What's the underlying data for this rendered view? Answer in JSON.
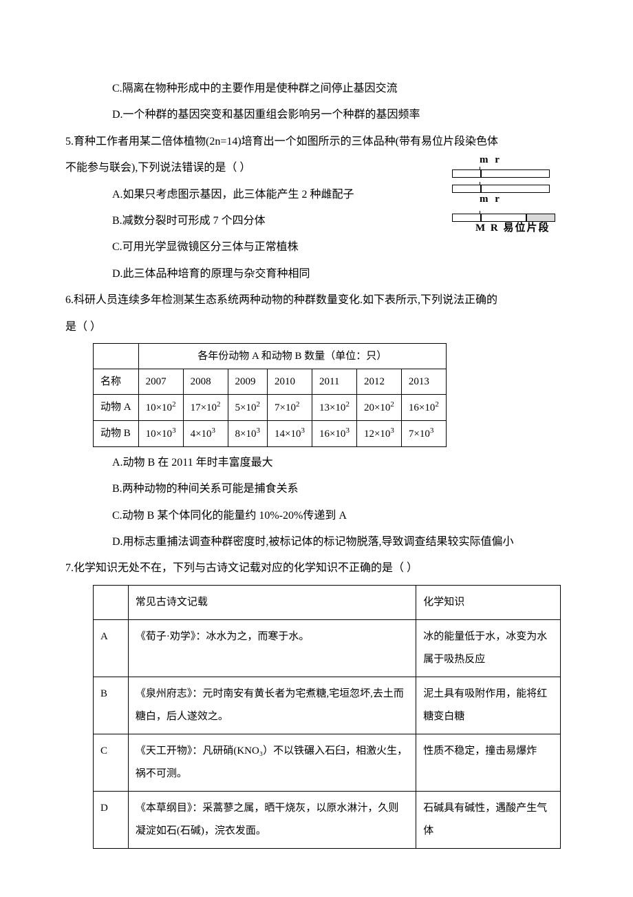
{
  "q4": {
    "optC": "C.隔离在物种形成中的主要作用是使种群之间停止基因交流",
    "optD": "D.一个种群的基因突变和基因重组会影响另一个种群的基因频率"
  },
  "q5": {
    "stem1": "5.育种工作者用某二倍体植物(2n=14)培育出一个如图所示的三体品种(带有易位片段染色体",
    "stem2": "不能参与联会),下列说法错误的是（     ）",
    "optA": "A.如果只考虑图示基因，此三体能产生 2 种雌配子",
    "optB": "B.减数分裂时可形成 7 个四分体",
    "optC": "C.可用光学显微镜区分三体与正常植株",
    "optD": "D.此三体品种培育的原理与杂交育种相同",
    "fig": {
      "label_top": "m r",
      "label_mid": "m r",
      "label_bot": "M R  易位片段"
    }
  },
  "q6": {
    "stem1": "6.科研人员连续多年检测某生态系统两种动物的种群数量变化.如下表所示,下列说法正确的",
    "stem2": "是（     ）",
    "table": {
      "title": "各年份动物 A 和动物 B 数量（单位：只）",
      "header": [
        "名称",
        "2007",
        "2008",
        "2009",
        "2010",
        "2011",
        "2012",
        "2013"
      ],
      "rows": [
        {
          "name": "动物 A",
          "cells": [
            "10×10",
            "17×10",
            "5×10",
            "7×10",
            "13×10",
            "20×10",
            "16×10"
          ],
          "exp": "2"
        },
        {
          "name": "动物 B",
          "cells": [
            "10×10",
            "4×10",
            "8×10",
            "14×10",
            "16×10",
            "12×10",
            "7×10"
          ],
          "exp": "3"
        }
      ]
    },
    "optA": "A.动物 B 在 2011 年时丰富度最大",
    "optB": "B.两种动物的种间关系可能是捕食关系",
    "optC": "C.动物 B 某个体同化的能量约 10%-20%传递到 A",
    "optD": "D.用标志重捕法调查种群密度时,被标记体的标记物脱落,导致调查结果较实际值偏小"
  },
  "q7": {
    "stem": "7.化学知识无处不在，下列与古诗文记载对应的化学知识不正确的是（       ）",
    "header": [
      "",
      "常见古诗文记载",
      "化学知识"
    ],
    "rows": [
      {
        "k": "A",
        "l": "《荀子·劝学》：冰水为之，而寒于水。",
        "r": "冰的能量低于水，冰变为水属于吸热反应"
      },
      {
        "k": "B",
        "l": "《泉州府志》：元时南安有黄长者为宅煮糖,宅垣忽坏,去土而糖白，后人遂效之。",
        "r": "泥土具有吸附作用，能将红糖变白糖"
      },
      {
        "k": "C",
        "l": "《天工开物》：凡研硝(KNO₃）不以铁碾入石臼，相激火生，祸不可测。",
        "r": "性质不稳定，撞击易爆炸"
      },
      {
        "k": "D",
        "l": "《本草纲目》：采蒿蓼之属，晒干烧灰，以原水淋汁，久则凝淀如石(石碱)，浣衣发面。",
        "r": "石碱具有碱性，遇酸产生气体"
      }
    ]
  }
}
